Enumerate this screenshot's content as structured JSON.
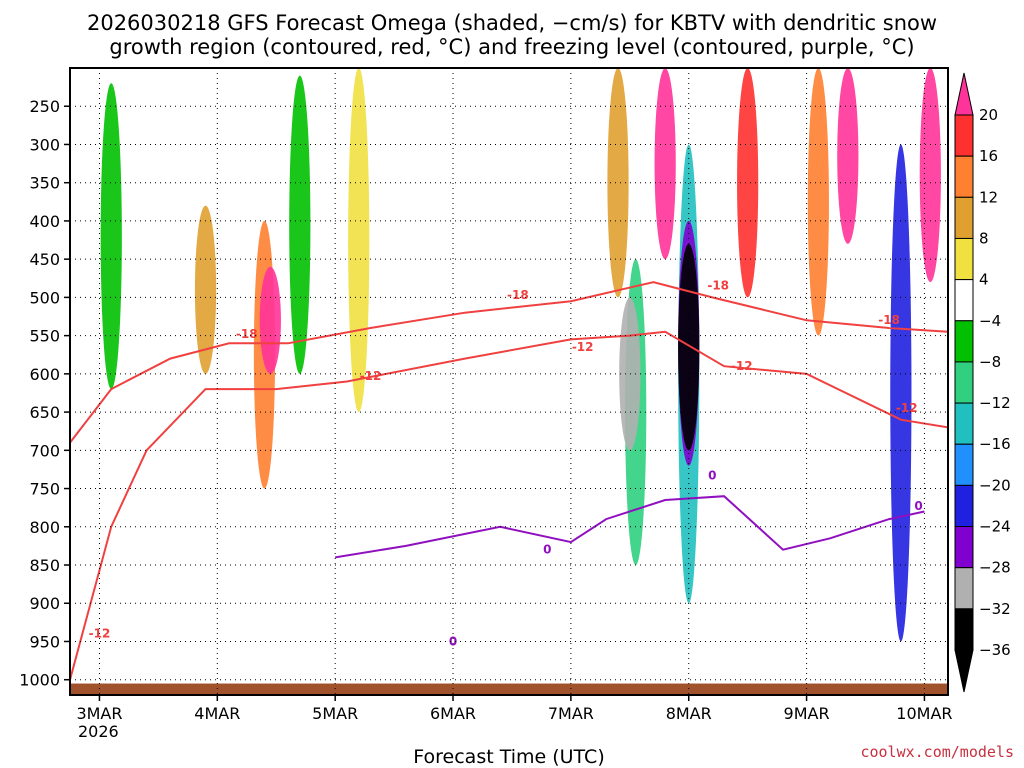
{
  "chart_data": {
    "type": "heatmap",
    "title_line1": "2026030218 GFS Forecast Omega (shaded, −cm/s) for KBTV with dendritic snow",
    "title_line2": "growth region (contoured, red, °C) and freezing level (contoured, purple, °C)",
    "xlabel": "Forecast Time (UTC)",
    "ylabel": "",
    "credit": "coolwx.com/models",
    "x_ticks": [
      "3MAR",
      "4MAR",
      "5MAR",
      "6MAR",
      "7MAR",
      "8MAR",
      "9MAR",
      "10MAR"
    ],
    "x_year": "2026",
    "x_range_days": [
      2.75,
      10.2
    ],
    "y_ticks": [
      250,
      300,
      350,
      400,
      450,
      500,
      550,
      600,
      650,
      700,
      750,
      800,
      850,
      900,
      950,
      1000
    ],
    "y_range_hpa": [
      200,
      1020
    ],
    "colorbar": {
      "ticks": [
        20,
        16,
        12,
        8,
        4,
        -4,
        -8,
        -12,
        -16,
        -20,
        -24,
        -28,
        -32,
        -36
      ],
      "colors": [
        "#ff3399",
        "#ff3030",
        "#ff8030",
        "#e0a030",
        "#f0e040",
        "#ffffff",
        "#00c000",
        "#30d080",
        "#20c0c0",
        "#2090ff",
        "#2020e0",
        "#8000d0",
        "#b0b0b0",
        "#000000"
      ]
    },
    "omega_blobs": [
      {
        "day": 3.1,
        "p1": 220,
        "p2": 620,
        "level": -8
      },
      {
        "day": 3.9,
        "p1": 380,
        "p2": 600,
        "level": 8
      },
      {
        "day": 4.4,
        "p1": 400,
        "p2": 750,
        "level": 12
      },
      {
        "day": 4.45,
        "p1": 460,
        "p2": 600,
        "level": 20
      },
      {
        "day": 4.7,
        "p1": 210,
        "p2": 600,
        "level": -8
      },
      {
        "day": 5.2,
        "p1": 200,
        "p2": 650,
        "level": 4
      },
      {
        "day": 7.4,
        "p1": 200,
        "p2": 500,
        "level": 8
      },
      {
        "day": 7.55,
        "p1": 450,
        "p2": 850,
        "level": -12
      },
      {
        "day": 7.5,
        "p1": 500,
        "p2": 700,
        "level": -32
      },
      {
        "day": 7.8,
        "p1": 200,
        "p2": 450,
        "level": 20
      },
      {
        "day": 8.0,
        "p1": 300,
        "p2": 900,
        "level": -16
      },
      {
        "day": 8.0,
        "p1": 400,
        "p2": 720,
        "level": -28
      },
      {
        "day": 8.0,
        "p1": 430,
        "p2": 700,
        "level": -36
      },
      {
        "day": 8.5,
        "p1": 200,
        "p2": 500,
        "level": 16
      },
      {
        "day": 9.1,
        "p1": 200,
        "p2": 550,
        "level": 12
      },
      {
        "day": 9.35,
        "p1": 200,
        "p2": 430,
        "level": 20
      },
      {
        "day": 9.8,
        "p1": 300,
        "p2": 950,
        "level": -24
      },
      {
        "day": 10.05,
        "p1": 200,
        "p2": 480,
        "level": 20
      }
    ],
    "dgz_minus12": [
      [
        2.75,
        1000
      ],
      [
        3.1,
        800
      ],
      [
        3.4,
        700
      ],
      [
        3.9,
        620
      ],
      [
        4.5,
        620
      ],
      [
        5.1,
        610
      ],
      [
        6.1,
        580
      ],
      [
        7.0,
        555
      ],
      [
        7.5,
        550
      ],
      [
        7.8,
        545
      ],
      [
        8.3,
        590
      ],
      [
        9.0,
        600
      ],
      [
        9.8,
        660
      ],
      [
        10.2,
        670
      ]
    ],
    "dgz_minus18": [
      [
        2.75,
        690
      ],
      [
        3.1,
        620
      ],
      [
        3.6,
        580
      ],
      [
        4.1,
        560
      ],
      [
        4.6,
        560
      ],
      [
        5.3,
        540
      ],
      [
        6.1,
        520
      ],
      [
        7.0,
        505
      ],
      [
        7.7,
        480
      ],
      [
        8.2,
        500
      ],
      [
        9.0,
        530
      ],
      [
        9.7,
        540
      ],
      [
        10.2,
        545
      ]
    ],
    "dgz_labels": [
      {
        "text": "-18",
        "day": 4.25,
        "p": 553
      },
      {
        "text": "-12",
        "day": 5.3,
        "p": 608
      },
      {
        "text": "-18",
        "day": 6.55,
        "p": 502
      },
      {
        "text": "-12",
        "day": 7.1,
        "p": 570
      },
      {
        "text": "-18",
        "day": 8.25,
        "p": 490
      },
      {
        "text": "-12",
        "day": 8.45,
        "p": 595
      },
      {
        "text": "-18",
        "day": 9.7,
        "p": 535
      },
      {
        "text": "-12",
        "day": 9.85,
        "p": 650
      },
      {
        "text": "-12",
        "day": 3.0,
        "p": 945
      }
    ],
    "freezing_0C": [
      [
        5.0,
        840
      ],
      [
        5.6,
        825
      ],
      [
        6.4,
        800
      ],
      [
        7.0,
        820
      ],
      [
        7.3,
        790
      ],
      [
        7.8,
        765
      ],
      [
        8.3,
        760
      ],
      [
        8.8,
        830
      ],
      [
        9.2,
        815
      ],
      [
        9.7,
        790
      ],
      [
        10.0,
        780
      ]
    ],
    "freezing_labels": [
      {
        "text": "0",
        "day": 6.8,
        "p": 835
      },
      {
        "text": "0",
        "day": 6.0,
        "p": 955
      },
      {
        "text": "0",
        "day": 8.2,
        "p": 738
      },
      {
        "text": "0",
        "day": 9.95,
        "p": 778
      }
    ]
  }
}
